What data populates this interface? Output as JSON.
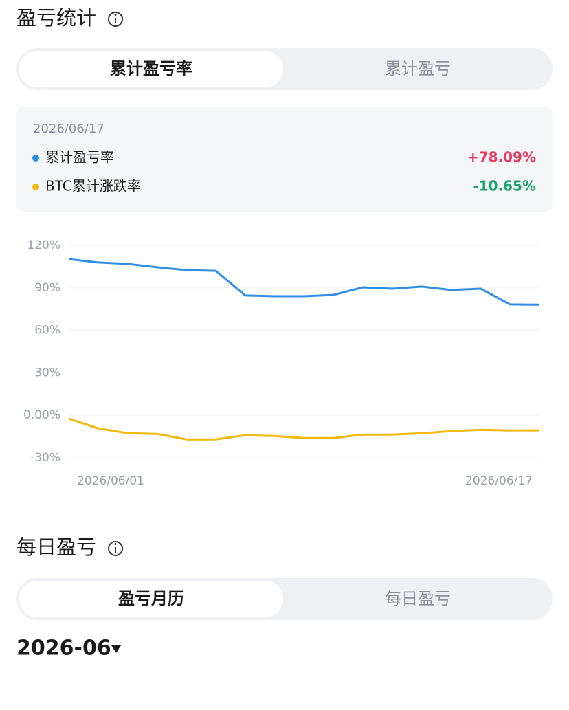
{
  "section1": {
    "title": "盈亏统计",
    "tabs": [
      "累计盈亏率",
      "累计盈亏"
    ],
    "active_tab": 0
  },
  "chart_data": {
    "type": "line",
    "tooltip": {
      "date": "2026/06/17",
      "values": [
        "+78.09%",
        "-10.65%"
      ],
      "colors": [
        "#e8365d",
        "#1aa36f"
      ]
    },
    "categories": [
      "2026/06/01",
      null,
      null,
      null,
      null,
      null,
      null,
      null,
      null,
      null,
      null,
      null,
      null,
      null,
      null,
      null,
      "2026/06/17"
    ],
    "series": [
      {
        "name": "累计盈亏率",
        "color": "#2f8de4",
        "values": [
          110.3,
          107.9,
          106.9,
          104.5,
          102.5,
          102.0,
          84.6,
          84.1,
          84.1,
          85.0,
          90.4,
          89.4,
          90.9,
          88.5,
          89.4,
          78.3,
          78.09
        ]
      },
      {
        "name": "BTC累计涨跌率",
        "color": "#f0b90b",
        "values": [
          -2.4,
          -9.2,
          -12.6,
          -13.1,
          -17.0,
          -17.0,
          -14.1,
          -14.6,
          -16.0,
          -16.0,
          -13.6,
          -13.6,
          -12.6,
          -11.2,
          -10.2,
          -10.7,
          -10.65
        ]
      }
    ],
    "ylim": [
      -30,
      120
    ],
    "yticks": [
      {
        "value": 120,
        "label": "120%"
      },
      {
        "value": 90,
        "label": "90%"
      },
      {
        "value": 60,
        "label": "60%"
      },
      {
        "value": 30,
        "label": "30%"
      },
      {
        "value": 0,
        "label": "0.00%"
      },
      {
        "value": -30,
        "label": "-30%"
      }
    ],
    "grid": true
  },
  "section2": {
    "title": "每日盈亏",
    "tabs": [
      "盈亏月历",
      "每日盈亏"
    ],
    "active_tab": 0
  },
  "month": "2026-06"
}
